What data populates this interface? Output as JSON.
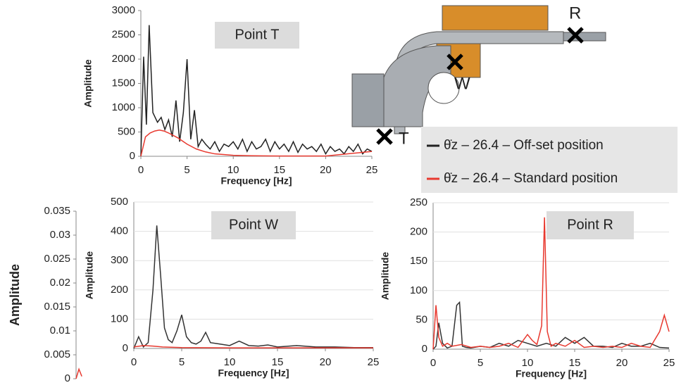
{
  "chart_data": [
    {
      "type": "line",
      "title": "Point T",
      "xlabel": "Frequency [Hz]",
      "ylabel": "Amplitude",
      "xlim": [
        0,
        25
      ],
      "ylim": [
        0,
        3000
      ],
      "xticks": [
        0,
        5,
        10,
        15,
        20,
        25
      ],
      "yticks": [
        0,
        500,
        1000,
        1500,
        2000,
        2500,
        3000
      ],
      "grid": false,
      "series": [
        {
          "name": "θ̇z – 26.4 – Off-set position",
          "color": "#222222",
          "x": [
            0,
            0.3,
            0.6,
            0.9,
            1.3,
            1.8,
            2.2,
            2.6,
            3,
            3.4,
            3.8,
            4.2,
            4.6,
            5,
            5.4,
            5.8,
            6.2,
            6.6,
            7,
            7.5,
            8,
            8.5,
            9,
            9.5,
            10,
            10.5,
            11,
            11.5,
            12,
            12.5,
            13,
            13.5,
            14,
            14.5,
            15,
            15.5,
            16,
            16.5,
            17,
            17.5,
            18,
            18.5,
            19,
            19.5,
            20,
            20.5,
            21,
            21.5,
            22,
            22.5,
            23,
            23.5,
            24,
            24.5,
            25
          ],
          "values": [
            0,
            2050,
            650,
            2700,
            900,
            700,
            800,
            550,
            750,
            400,
            1150,
            300,
            900,
            2000,
            350,
            950,
            200,
            350,
            250,
            150,
            300,
            100,
            250,
            200,
            300,
            150,
            350,
            100,
            300,
            150,
            200,
            350,
            100,
            300,
            150,
            250,
            100,
            300,
            80,
            250,
            150,
            200,
            100,
            250,
            50,
            200,
            100,
            150,
            50,
            200,
            100,
            250,
            50,
            150,
            100
          ]
        },
        {
          "name": "θ̇z – 26.4 – Standard position",
          "color": "#e8392f",
          "x": [
            0,
            0.5,
            1,
            1.5,
            2,
            2.5,
            3,
            4,
            5,
            6,
            7,
            8,
            10,
            12,
            15,
            20,
            25
          ],
          "values": [
            0,
            400,
            480,
            520,
            540,
            520,
            480,
            380,
            250,
            150,
            90,
            50,
            20,
            10,
            5,
            5,
            100
          ]
        }
      ]
    },
    {
      "type": "line",
      "ylabel": "Amplitude",
      "xlim": [
        0,
        25
      ],
      "ylim": [
        0,
        0.035
      ],
      "yticks": [
        0,
        0.005,
        0.01,
        0.015,
        0.02,
        0.025,
        0.03,
        0.035
      ],
      "grid": false,
      "series": [
        {
          "color": "#e8392f",
          "x": [
            0,
            0.3,
            0.6
          ],
          "values": [
            0,
            0.002,
            0.0005
          ]
        }
      ]
    },
    {
      "type": "line",
      "title": "Point W",
      "xlabel": "Frequency [Hz]",
      "ylabel": "Amplitude",
      "xlim": [
        0,
        25
      ],
      "ylim": [
        0,
        500
      ],
      "xticks": [
        0,
        5,
        10,
        15,
        20,
        25
      ],
      "yticks": [
        0,
        100,
        200,
        300,
        400,
        500
      ],
      "grid": true,
      "series": [
        {
          "color": "#333333",
          "x": [
            0,
            0.5,
            1,
            1.5,
            2,
            2.4,
            2.8,
            3.2,
            3.6,
            4,
            4.5,
            5,
            5.5,
            6,
            6.5,
            7,
            7.5,
            8,
            9,
            10,
            11,
            12,
            13,
            14,
            15,
            17,
            19,
            21,
            23,
            25
          ],
          "values": [
            0,
            40,
            5,
            20,
            200,
            420,
            250,
            70,
            30,
            20,
            60,
            115,
            40,
            20,
            15,
            25,
            55,
            20,
            15,
            10,
            25,
            10,
            8,
            12,
            5,
            10,
            5,
            5,
            3,
            3
          ]
        },
        {
          "color": "#e8392f",
          "x": [
            0,
            1,
            2,
            3,
            5,
            10,
            15,
            20,
            25
          ],
          "values": [
            5,
            10,
            8,
            5,
            3,
            2,
            2,
            2,
            2
          ]
        }
      ]
    },
    {
      "type": "line",
      "title": "Point R",
      "xlabel": "Frequency [Hz]",
      "ylabel": "Amplitude",
      "xlim": [
        0,
        25
      ],
      "ylim": [
        0,
        250
      ],
      "xticks": [
        0,
        5,
        10,
        15,
        20,
        25
      ],
      "yticks": [
        0,
        50,
        100,
        150,
        200,
        250
      ],
      "grid": true,
      "series": [
        {
          "color": "#333333",
          "x": [
            0,
            0.3,
            0.6,
            1,
            1.5,
            2,
            2.5,
            2.8,
            3.1,
            3.5,
            4,
            5,
            6,
            7,
            8,
            9,
            10,
            11,
            12,
            13,
            14,
            15,
            16,
            17,
            18,
            19,
            20,
            21,
            22,
            23,
            24,
            25
          ],
          "values": [
            0,
            5,
            45,
            10,
            2,
            5,
            75,
            80,
            5,
            3,
            2,
            5,
            3,
            10,
            5,
            15,
            10,
            5,
            10,
            5,
            20,
            10,
            20,
            5,
            5,
            3,
            10,
            5,
            5,
            10,
            3,
            2
          ]
        },
        {
          "color": "#e8392f",
          "x": [
            0,
            0.3,
            0.6,
            1,
            1.5,
            2,
            3,
            4,
            5,
            6,
            7,
            8,
            9,
            10,
            10.5,
            11,
            11.5,
            11.8,
            12.1,
            12.5,
            13,
            14,
            15,
            16,
            17,
            18,
            19,
            20,
            21,
            22,
            23,
            24,
            24.5,
            25
          ],
          "values": [
            0,
            75,
            20,
            5,
            10,
            5,
            8,
            3,
            5,
            3,
            5,
            10,
            3,
            25,
            15,
            8,
            40,
            225,
            30,
            5,
            10,
            5,
            15,
            3,
            5,
            3,
            5,
            3,
            10,
            5,
            3,
            30,
            58,
            30
          ]
        }
      ]
    }
  ],
  "diagram": {
    "labels": [
      "R",
      "W",
      "T"
    ]
  }
}
